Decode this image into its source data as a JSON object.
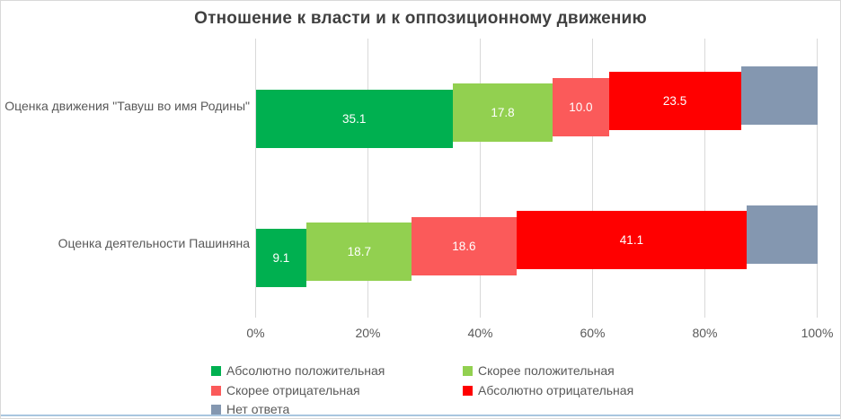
{
  "chart_data": {
    "type": "bar",
    "orientation": "horizontal",
    "stacked": true,
    "title": "Отношение к власти и к оппозиционному движению",
    "categories": [
      "Оценка движения \"Тавуш во имя Родины\"",
      "Оценка деятельности Пашиняна"
    ],
    "series": [
      {
        "name": "Абсолютно положительная",
        "color": "#00B050",
        "values": [
          35.1,
          9.1
        ],
        "data_labels": [
          "35.1",
          "9.1"
        ]
      },
      {
        "name": "Скорее положительная",
        "color": "#92D050",
        "values": [
          17.8,
          18.7
        ],
        "data_labels": [
          "17.8",
          "18.7"
        ]
      },
      {
        "name": "Скорее отрицательная",
        "color": "#FB5A5A",
        "values": [
          10.0,
          18.6
        ],
        "data_labels": [
          "10.0",
          "18.6"
        ]
      },
      {
        "name": "Абсолютно отрицательная",
        "color": "#FF0000",
        "values": [
          23.5,
          41.1
        ],
        "data_labels": [
          "23.5",
          "41.1"
        ]
      },
      {
        "name": "Нет ответа",
        "color": "#8497B0",
        "values": [
          13.6,
          12.5
        ],
        "data_labels": [
          "",
          ""
        ]
      }
    ],
    "x_axis": {
      "min": 0,
      "max": 100,
      "ticks": [
        "0%",
        "20%",
        "40%",
        "60%",
        "80%",
        "100%"
      ],
      "gridlines": true
    },
    "legend": {
      "position": "bottom",
      "columns": 2
    },
    "style": {
      "value_label_color": "#ffffff",
      "axis_text_color": "#595959",
      "title_color": "#404040",
      "gridline_color": "#d9d9d9",
      "border_color": "#d9d9d9",
      "bottom_rule_color": "#a9c6df"
    }
  }
}
